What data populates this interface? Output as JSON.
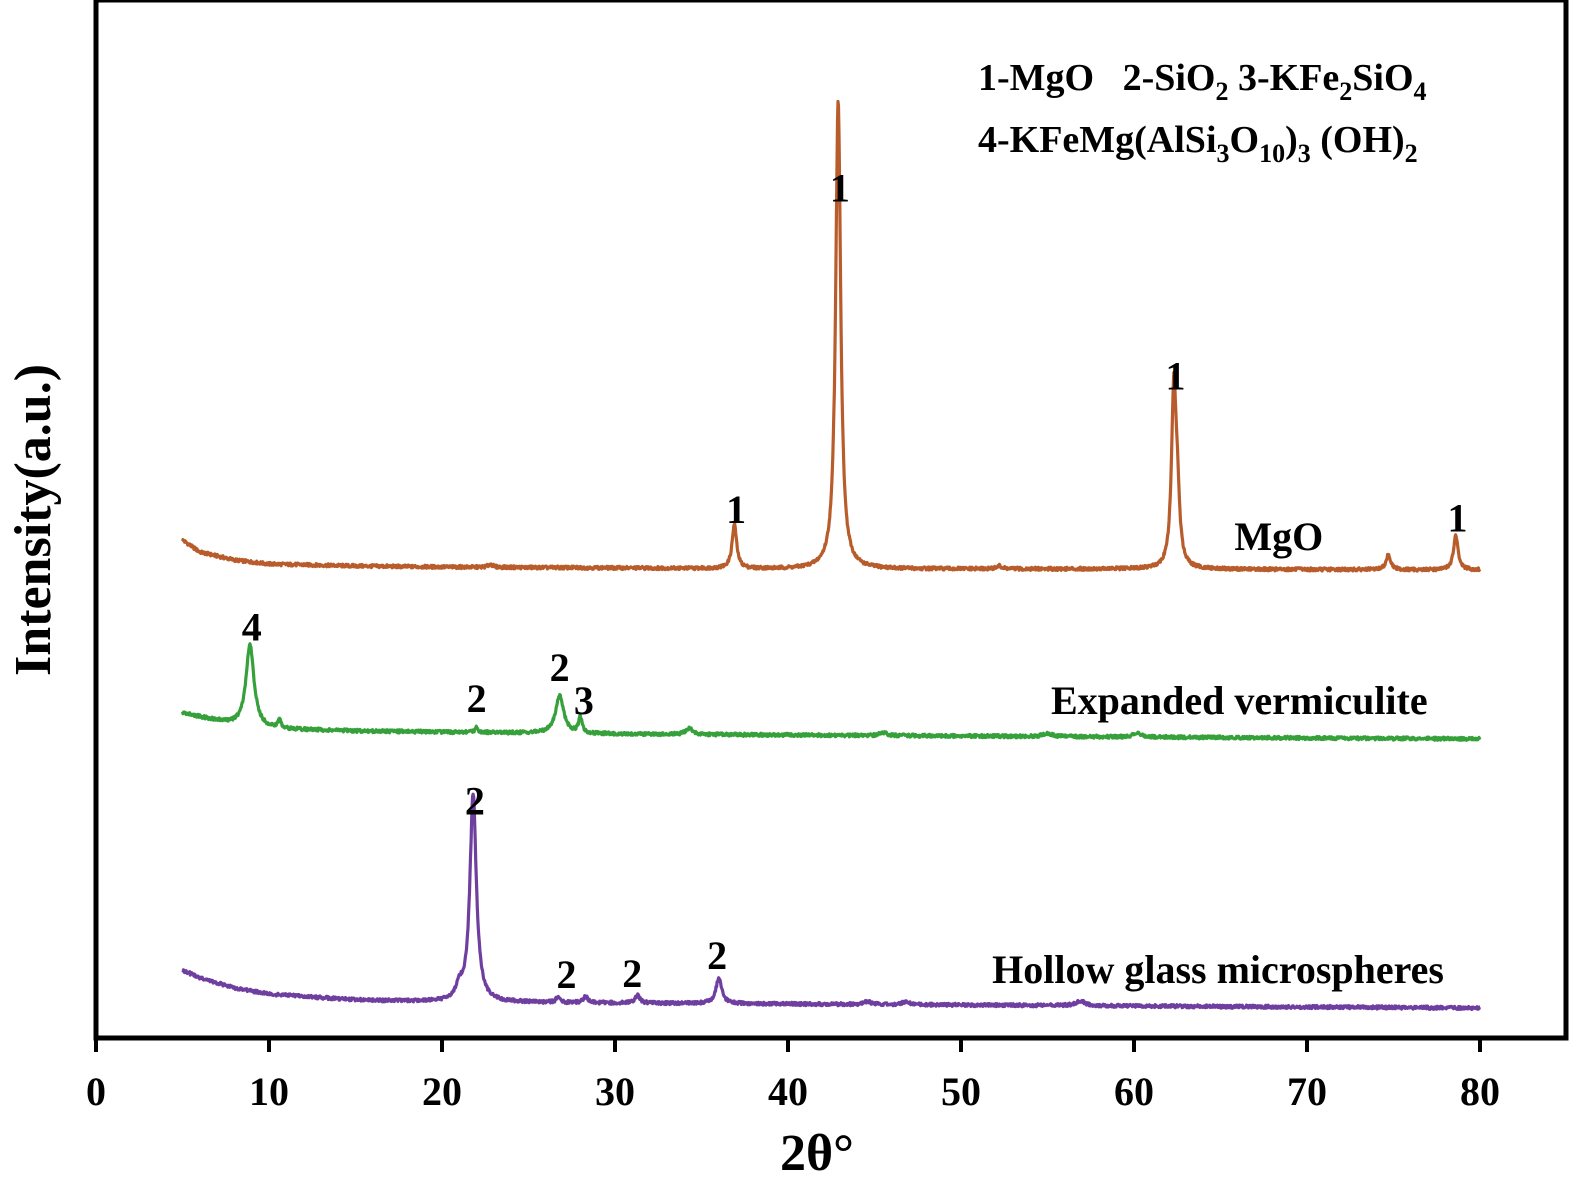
{
  "chart_data": {
    "type": "line",
    "xlabel": "2θ°",
    "ylabel": "Intensity(a.u.)",
    "xlim": [
      0,
      85
    ],
    "xticks": [
      0,
      10,
      20,
      30,
      40,
      50,
      60,
      70,
      80
    ],
    "yticks_shown": false,
    "legend_lines": [
      {
        "segments": [
          {
            "t": "1-MgO   2-SiO",
            "sub": false
          },
          {
            "t": "2",
            "sub": true
          },
          {
            "t": " 3-KFe",
            "sub": false
          },
          {
            "t": "2",
            "sub": true
          },
          {
            "t": "SiO",
            "sub": false
          },
          {
            "t": "4",
            "sub": true
          }
        ]
      },
      {
        "segments": [
          {
            "t": "4-KFeMg(AlSi",
            "sub": false
          },
          {
            "t": "3",
            "sub": true
          },
          {
            "t": "O",
            "sub": false
          },
          {
            "t": "10",
            "sub": true
          },
          {
            "t": ")",
            "sub": false
          },
          {
            "t": "3",
            "sub": true
          },
          {
            "t": " (OH)",
            "sub": false
          },
          {
            "t": "2",
            "sub": true
          }
        ]
      }
    ],
    "series": [
      {
        "name": "MgO",
        "color": "#b85c2c",
        "x_range": [
          5,
          80
        ],
        "baseline": [
          [
            5,
            30
          ],
          [
            6,
            18
          ],
          [
            8,
            10
          ],
          [
            10,
            6
          ],
          [
            15,
            4
          ],
          [
            20,
            3
          ],
          [
            30,
            2
          ],
          [
            40,
            1
          ],
          [
            50,
            1
          ],
          [
            60,
            1
          ],
          [
            70,
            0.5
          ],
          [
            80,
            0
          ]
        ],
        "peaks": [
          {
            "x": 36.9,
            "h": 44,
            "w": 0.2
          },
          {
            "x": 42.9,
            "h": 470,
            "w": 0.22
          },
          {
            "x": 62.3,
            "h": 172,
            "w": 0.2
          },
          {
            "x": 62.5,
            "h": 60,
            "w": 0.2
          },
          {
            "x": 74.7,
            "h": 15,
            "w": 0.2
          },
          {
            "x": 78.6,
            "h": 34,
            "w": 0.2
          },
          {
            "x": 52.2,
            "h": 3,
            "w": 0.2
          },
          {
            "x": 22.8,
            "h": 3,
            "w": 0.2
          }
        ],
        "peak_labels": [
          {
            "x": 37.0,
            "text": "1"
          },
          {
            "x": 43.0,
            "text": "1"
          },
          {
            "x": 62.4,
            "text": "1"
          },
          {
            "x": 78.7,
            "text": "1"
          }
        ],
        "label": {
          "text": "MgO",
          "x": 65.8
        }
      },
      {
        "name": "Expanded vermiculite",
        "color": "#36a03a",
        "x_range": [
          5,
          80
        ],
        "baseline": [
          [
            5,
            26
          ],
          [
            6,
            22
          ],
          [
            7,
            18
          ],
          [
            8,
            14
          ],
          [
            10,
            10
          ],
          [
            15,
            8
          ],
          [
            20,
            7
          ],
          [
            30,
            5
          ],
          [
            40,
            4
          ],
          [
            50,
            3
          ],
          [
            60,
            2
          ],
          [
            70,
            1
          ],
          [
            80,
            0
          ]
        ],
        "peaks": [
          {
            "x": 8.9,
            "h": 82,
            "w": 0.35
          },
          {
            "x": 10.6,
            "h": 8,
            "w": 0.15
          },
          {
            "x": 22.0,
            "h": 6,
            "w": 0.12
          },
          {
            "x": 26.8,
            "h": 38,
            "w": 0.35
          },
          {
            "x": 28.0,
            "h": 16,
            "w": 0.15
          },
          {
            "x": 34.3,
            "h": 6,
            "w": 0.3
          },
          {
            "x": 45.5,
            "h": 3,
            "w": 0.3
          },
          {
            "x": 55.0,
            "h": 3,
            "w": 0.4
          },
          {
            "x": 60.2,
            "h": 4,
            "w": 0.4
          }
        ],
        "peak_labels": [
          {
            "x": 9.0,
            "text": "4"
          },
          {
            "x": 22.0,
            "text": "2"
          },
          {
            "x": 26.8,
            "text": "2"
          },
          {
            "x": 28.2,
            "text": "3"
          }
        ],
        "label": {
          "text": "Expanded vermiculite",
          "x": 55.2
        }
      },
      {
        "name": "Hollow glass microspheres",
        "color": "#6f3fa0",
        "x_range": [
          5,
          80
        ],
        "baseline": [
          [
            5,
            38
          ],
          [
            6,
            30
          ],
          [
            8,
            20
          ],
          [
            10,
            14
          ],
          [
            15,
            8
          ],
          [
            20,
            6
          ],
          [
            30,
            5
          ],
          [
            40,
            4
          ],
          [
            50,
            3
          ],
          [
            60,
            2
          ],
          [
            70,
            1
          ],
          [
            80,
            0
          ]
        ],
        "peaks": [
          {
            "x": 21.8,
            "h": 208,
            "w": 0.28
          },
          {
            "x": 21.0,
            "h": 12,
            "w": 0.3
          },
          {
            "x": 26.7,
            "h": 6,
            "w": 0.15
          },
          {
            "x": 28.3,
            "h": 6,
            "w": 0.2
          },
          {
            "x": 31.3,
            "h": 8,
            "w": 0.2
          },
          {
            "x": 36.0,
            "h": 26,
            "w": 0.25
          },
          {
            "x": 44.6,
            "h": 3,
            "w": 0.3
          },
          {
            "x": 46.8,
            "h": 3,
            "w": 0.3
          },
          {
            "x": 56.9,
            "h": 5,
            "w": 0.4
          }
        ],
        "peak_labels": [
          {
            "x": 21.9,
            "text": "2"
          },
          {
            "x": 27.2,
            "text": "2"
          },
          {
            "x": 31.0,
            "text": "2"
          },
          {
            "x": 35.9,
            "text": "2"
          }
        ],
        "label": {
          "text": "Hollow glass microspheres",
          "x": 51.8
        }
      }
    ]
  }
}
